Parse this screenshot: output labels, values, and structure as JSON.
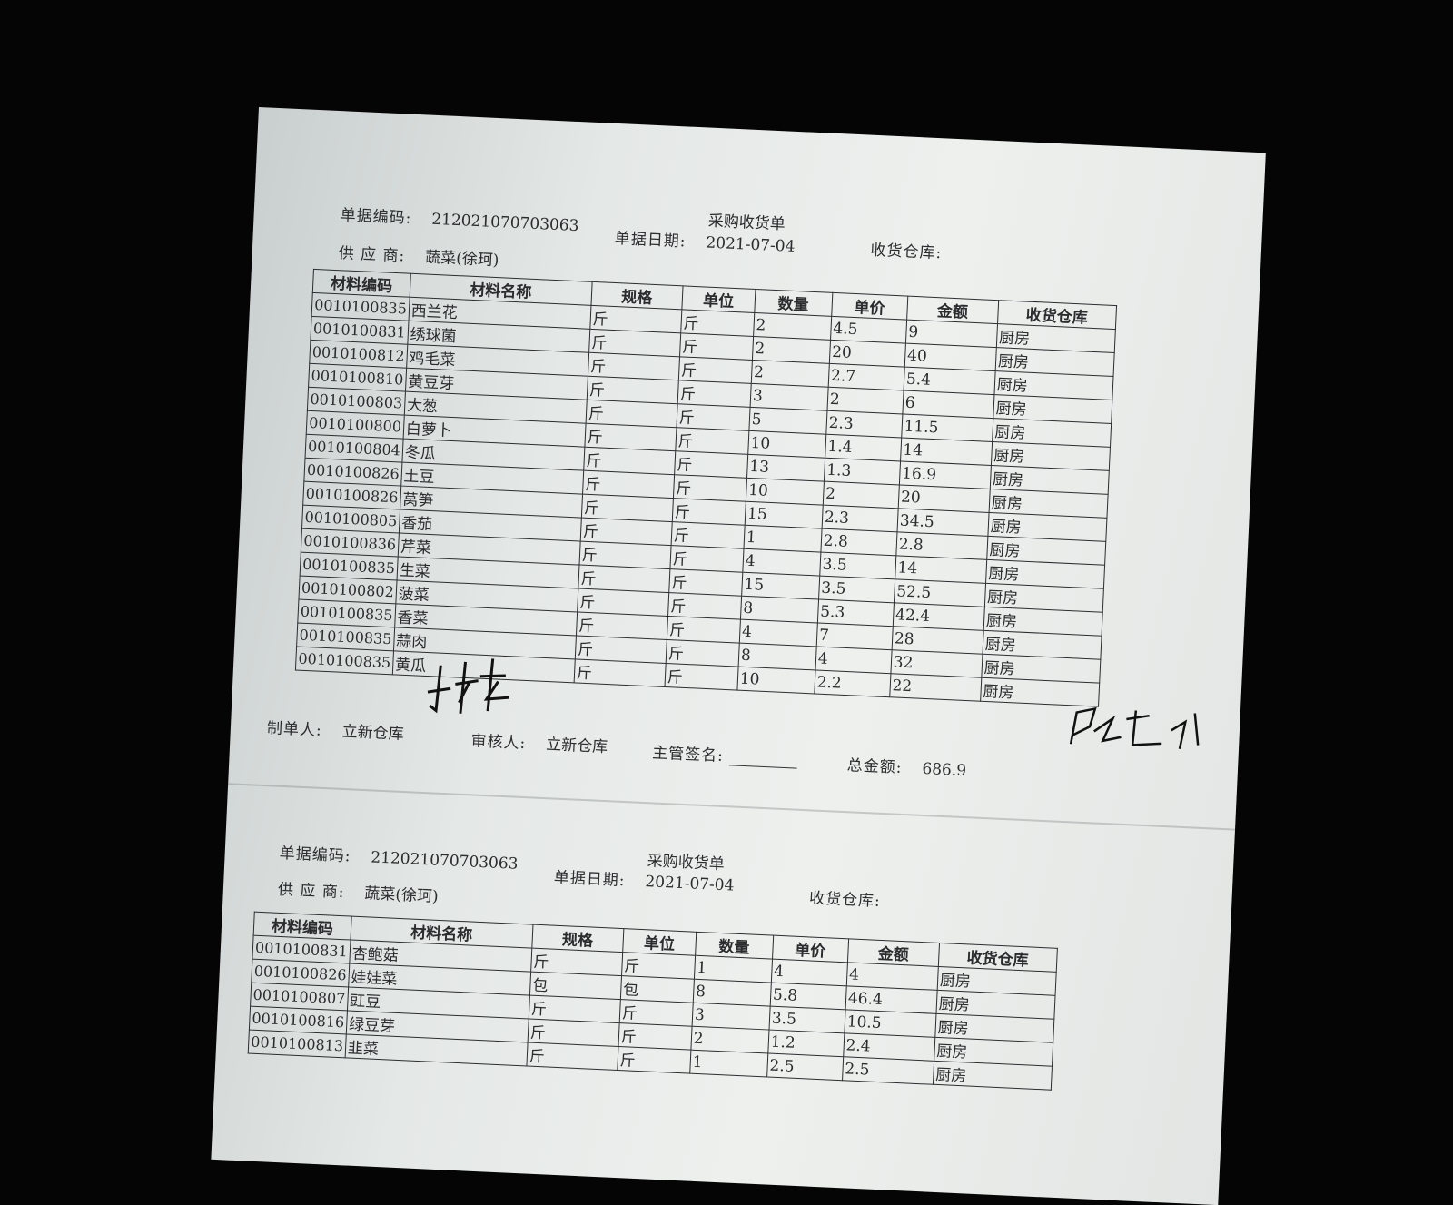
{
  "receipts": [
    {
      "title": "采购收货单",
      "doc_no_label": "单据编码:",
      "doc_no": "212021070703063",
      "date_label": "单据日期:",
      "date": "2021-07-04",
      "warehouse_label": "收货仓库:",
      "supplier_label": "供 应 商:",
      "supplier": "蔬菜(徐珂)",
      "columns": [
        "材料编码",
        "材料名称",
        "规格",
        "单位",
        "数量",
        "单价",
        "金额",
        "收货仓库"
      ],
      "rows": [
        [
          "0010100835",
          "西兰花",
          "斤",
          "斤",
          "2",
          "4.5",
          "9",
          "厨房"
        ],
        [
          "0010100831",
          "绣球菌",
          "斤",
          "斤",
          "2",
          "20",
          "40",
          "厨房"
        ],
        [
          "0010100812",
          "鸡毛菜",
          "斤",
          "斤",
          "2",
          "2.7",
          "5.4",
          "厨房"
        ],
        [
          "0010100810",
          "黄豆芽",
          "斤",
          "斤",
          "3",
          "2",
          "6",
          "厨房"
        ],
        [
          "0010100803",
          "大葱",
          "斤",
          "斤",
          "5",
          "2.3",
          "11.5",
          "厨房"
        ],
        [
          "0010100800",
          "白萝卜",
          "斤",
          "斤",
          "10",
          "1.4",
          "14",
          "厨房"
        ],
        [
          "0010100804",
          "冬瓜",
          "斤",
          "斤",
          "13",
          "1.3",
          "16.9",
          "厨房"
        ],
        [
          "0010100826",
          "土豆",
          "斤",
          "斤",
          "10",
          "2",
          "20",
          "厨房"
        ],
        [
          "0010100826",
          "莴笋",
          "斤",
          "斤",
          "15",
          "2.3",
          "34.5",
          "厨房"
        ],
        [
          "0010100805",
          "香茄",
          "斤",
          "斤",
          "1",
          "2.8",
          "2.8",
          "厨房"
        ],
        [
          "0010100836",
          "芹菜",
          "斤",
          "斤",
          "4",
          "3.5",
          "14",
          "厨房"
        ],
        [
          "0010100835",
          "生菜",
          "斤",
          "斤",
          "15",
          "3.5",
          "52.5",
          "厨房"
        ],
        [
          "0010100802",
          "菠菜",
          "斤",
          "斤",
          "8",
          "5.3",
          "42.4",
          "厨房"
        ],
        [
          "0010100835",
          "香菜",
          "斤",
          "斤",
          "4",
          "7",
          "28",
          "厨房"
        ],
        [
          "0010100835",
          "蒜肉",
          "斤",
          "斤",
          "8",
          "4",
          "32",
          "厨房"
        ],
        [
          "0010100835",
          "黄瓜",
          "斤",
          "斤",
          "10",
          "2.2",
          "22",
          "厨房"
        ]
      ],
      "footer": {
        "maker_label": "制单人:",
        "maker": "立新仓库",
        "reviewer_label": "审核人:",
        "reviewer": "立新仓库",
        "supervisor_label": "主管签名:",
        "total_label": "总金额:",
        "total": "686.9"
      }
    },
    {
      "title": "采购收货单",
      "doc_no_label": "单据编码:",
      "doc_no": "212021070703063",
      "date_label": "单据日期:",
      "date": "2021-07-04",
      "warehouse_label": "收货仓库:",
      "supplier_label": "供 应 商:",
      "supplier": "蔬菜(徐珂)",
      "columns": [
        "材料编码",
        "材料名称",
        "规格",
        "单位",
        "数量",
        "单价",
        "金额",
        "收货仓库"
      ],
      "rows": [
        [
          "0010100831",
          "杏鲍菇",
          "斤",
          "斤",
          "1",
          "4",
          "4",
          "厨房"
        ],
        [
          "0010100826",
          "娃娃菜",
          "包",
          "包",
          "8",
          "5.8",
          "46.4",
          "厨房"
        ],
        [
          "0010100807",
          "豇豆",
          "斤",
          "斤",
          "3",
          "3.5",
          "10.5",
          "厨房"
        ],
        [
          "0010100816",
          "绿豆芽",
          "斤",
          "斤",
          "2",
          "1.2",
          "2.4",
          "厨房"
        ],
        [
          "0010100813",
          "韭菜",
          "斤",
          "斤",
          "1",
          "2.5",
          "2.5",
          "厨房"
        ]
      ]
    }
  ]
}
